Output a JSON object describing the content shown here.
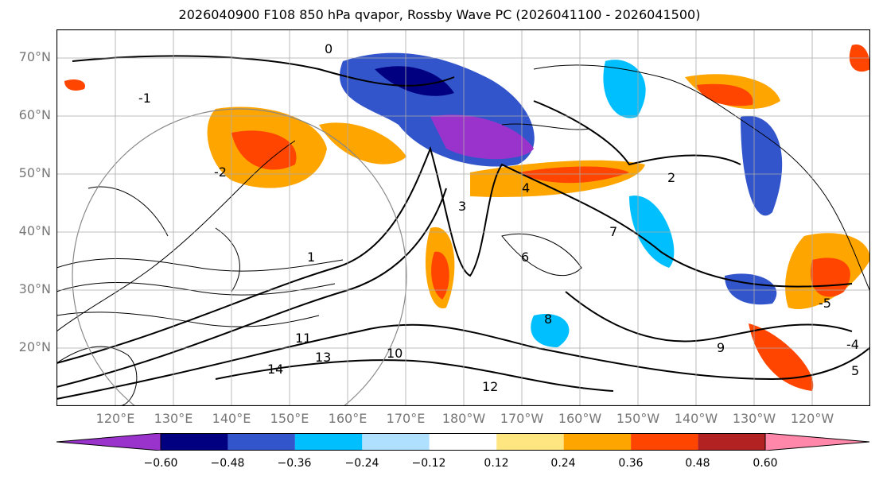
{
  "title": "2026040900 F108 850 hPa qvapor, Rossby Wave PC (2026041100 - 2026041500)",
  "map": {
    "lon_labels": [
      "120°E",
      "130°E",
      "140°E",
      "150°E",
      "160°E",
      "170°E",
      "180°W",
      "170°W",
      "160°W",
      "150°W",
      "140°W",
      "130°W",
      "120°W"
    ],
    "lat_labels": [
      "70°N",
      "60°N",
      "50°N",
      "40°N",
      "30°N",
      "20°N"
    ],
    "contour_labels": [
      "0",
      "-1",
      "1",
      "-2",
      "2",
      "4",
      "3",
      "6",
      "9",
      "8",
      "11",
      "13",
      "14",
      "10",
      "12",
      "5",
      "7",
      "-4",
      "-5"
    ]
  },
  "colorbar": {
    "colors": [
      "#9933cc",
      "#000080",
      "#3355cc",
      "#00bfff",
      "#b0e0ff",
      "#ffffff",
      "#ffe680",
      "#ffa500",
      "#ff4500",
      "#b22222",
      "#ff88aa"
    ],
    "tick_labels": [
      "−0.60",
      "−0.48",
      "−0.36",
      "−0.24",
      "−0.12",
      "0.12",
      "0.24",
      "0.36",
      "0.48",
      "0.60"
    ]
  }
}
